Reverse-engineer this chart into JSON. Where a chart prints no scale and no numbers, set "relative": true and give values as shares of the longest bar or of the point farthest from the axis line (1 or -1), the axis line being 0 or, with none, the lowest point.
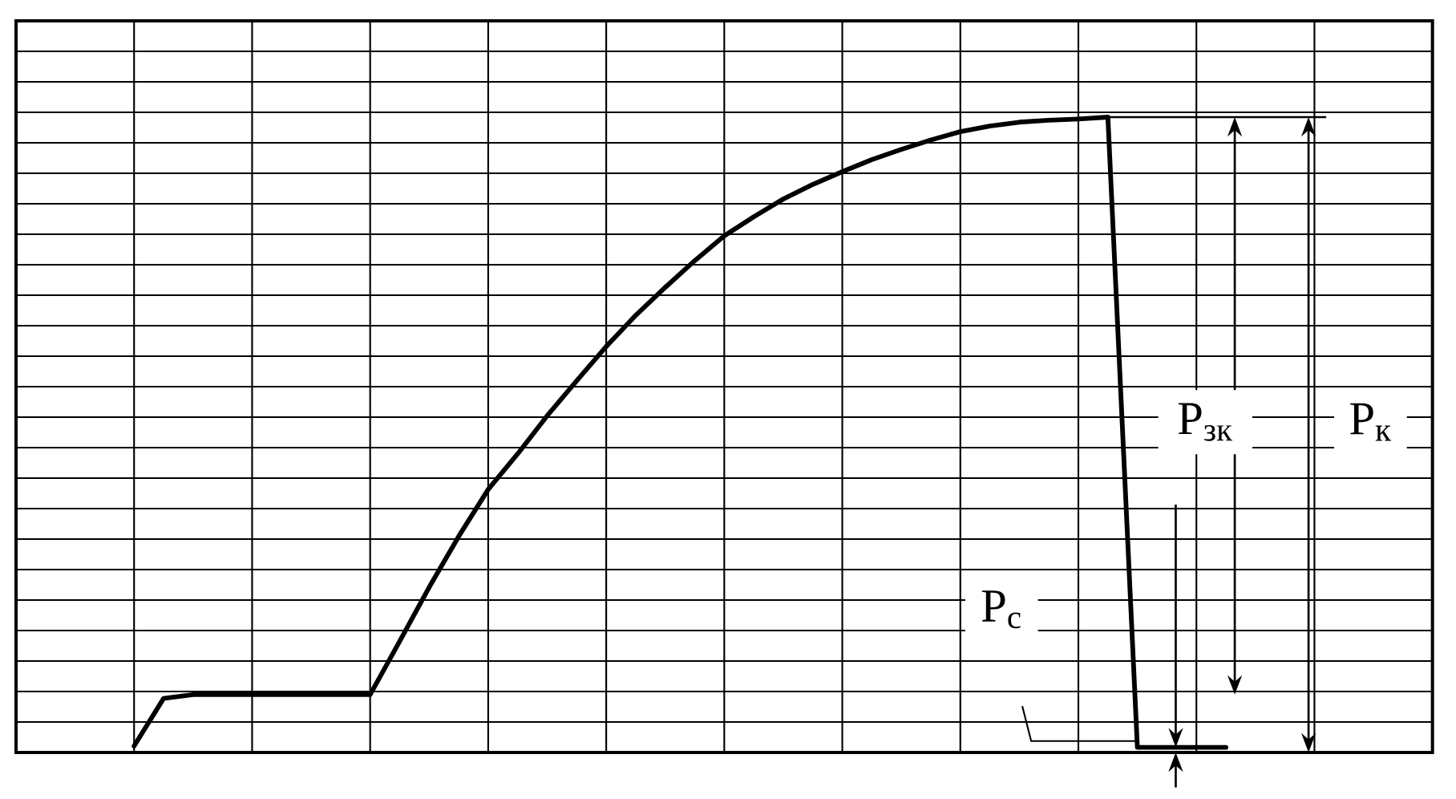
{
  "chart_data": {
    "type": "line",
    "relative": true,
    "grid": true,
    "categories": [
      null,
      null,
      null,
      null,
      null,
      null,
      null,
      null,
      null,
      null,
      null,
      null,
      null,
      null,
      null,
      null,
      null,
      null,
      null,
      null,
      null,
      null,
      null,
      null,
      null,
      null,
      null,
      null,
      null,
      null,
      null,
      null,
      null,
      null,
      null,
      null,
      null,
      null
    ],
    "series": [
      {
        "color": "#000000",
        "values": [
          0.01,
          0.085,
          0.091,
          0.091,
          0.091,
          0.091,
          0.091,
          0.091,
          0.091,
          0.175,
          0.26,
          0.34,
          0.414,
          0.47,
          0.53,
          0.585,
          0.639,
          0.688,
          0.732,
          0.774,
          0.813,
          0.843,
          0.871,
          0.894,
          0.914,
          0.933,
          0.949,
          0.964,
          0.977,
          0.986,
          0.992,
          0.995,
          0.997,
          1.0,
          0.008,
          0.008,
          0.008,
          0.008
        ]
      }
    ],
    "annotations": [
      "P$_{зк}$",
      "P$_{к}$",
      "P$_{с}$"
    ]
  }
}
